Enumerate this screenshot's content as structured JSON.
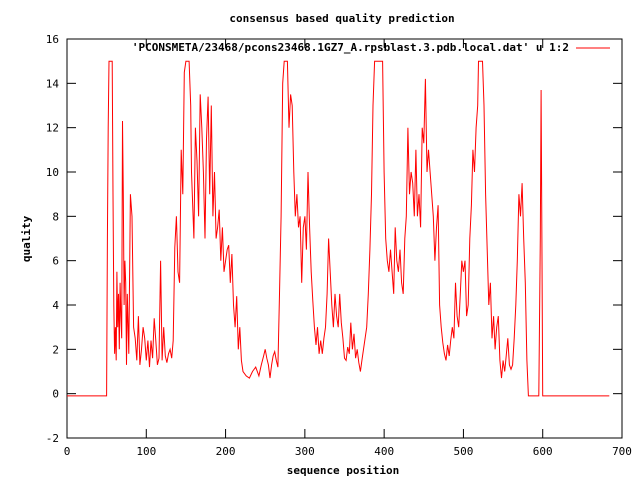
{
  "chart_data": {
    "type": "line",
    "title": "consensus based quality prediction",
    "xlabel": "sequence position",
    "ylabel": "quality",
    "xlim": [
      0,
      700
    ],
    "ylim": [
      -2,
      16
    ],
    "xticks": [
      0,
      100,
      200,
      300,
      400,
      500,
      600,
      700
    ],
    "yticks": [
      -2,
      0,
      2,
      4,
      6,
      8,
      10,
      12,
      14,
      16
    ],
    "grid": false,
    "legend_position": "top-right",
    "series_color": "#ff0000",
    "series": [
      {
        "name": "'PCONSMETA/23468/pcons23468.1GZ7_A.rpsblast.3.pdb.local.dat' u 1:2",
        "points": [
          [
            0,
            -0.1
          ],
          [
            50,
            -0.1
          ],
          [
            51,
            7
          ],
          [
            52,
            12
          ],
          [
            53,
            15
          ],
          [
            55,
            15
          ],
          [
            57,
            15
          ],
          [
            58,
            9
          ],
          [
            59,
            4
          ],
          [
            60,
            1.8
          ],
          [
            61,
            3
          ],
          [
            62,
            1.5
          ],
          [
            63,
            5.5
          ],
          [
            64,
            3
          ],
          [
            65,
            4.5
          ],
          [
            66,
            2
          ],
          [
            67,
            5
          ],
          [
            68,
            3.5
          ],
          [
            69,
            2.5
          ],
          [
            70,
            12.3
          ],
          [
            71,
            9
          ],
          [
            72,
            4
          ],
          [
            73,
            6
          ],
          [
            74,
            5
          ],
          [
            75,
            1.3
          ],
          [
            76,
            4.5
          ],
          [
            78,
            1.8
          ],
          [
            80,
            9
          ],
          [
            82,
            8
          ],
          [
            84,
            3
          ],
          [
            86,
            2.5
          ],
          [
            88,
            1.5
          ],
          [
            90,
            3.5
          ],
          [
            92,
            1.3
          ],
          [
            94,
            2
          ],
          [
            96,
            3
          ],
          [
            98,
            2.5
          ],
          [
            100,
            1.5
          ],
          [
            102,
            2.4
          ],
          [
            104,
            1.2
          ],
          [
            106,
            2.4
          ],
          [
            108,
            1.6
          ],
          [
            110,
            3.4
          ],
          [
            112,
            2.4
          ],
          [
            114,
            1.3
          ],
          [
            116,
            1.6
          ],
          [
            118,
            6
          ],
          [
            120,
            1.5
          ],
          [
            122,
            3
          ],
          [
            124,
            1.7
          ],
          [
            126,
            1.4
          ],
          [
            128,
            1.8
          ],
          [
            130,
            2
          ],
          [
            132,
            1.6
          ],
          [
            134,
            2.4
          ],
          [
            136,
            6.6
          ],
          [
            138,
            8
          ],
          [
            140,
            5.5
          ],
          [
            142,
            5
          ],
          [
            144,
            11
          ],
          [
            146,
            9
          ],
          [
            148,
            14.5
          ],
          [
            150,
            15
          ],
          [
            154,
            15
          ],
          [
            156,
            13
          ],
          [
            157,
            10
          ],
          [
            158,
            9
          ],
          [
            160,
            7
          ],
          [
            162,
            12
          ],
          [
            164,
            10.5
          ],
          [
            166,
            8
          ],
          [
            168,
            13.5
          ],
          [
            170,
            12
          ],
          [
            172,
            10
          ],
          [
            174,
            7
          ],
          [
            176,
            11.5
          ],
          [
            178,
            13.4
          ],
          [
            180,
            9
          ],
          [
            182,
            13
          ],
          [
            184,
            8
          ],
          [
            186,
            10
          ],
          [
            188,
            7
          ],
          [
            190,
            7.5
          ],
          [
            192,
            8.3
          ],
          [
            194,
            6
          ],
          [
            196,
            7.5
          ],
          [
            198,
            5.5
          ],
          [
            200,
            6
          ],
          [
            202,
            6.5
          ],
          [
            204,
            6.7
          ],
          [
            206,
            5
          ],
          [
            208,
            6.3
          ],
          [
            210,
            4
          ],
          [
            212,
            3
          ],
          [
            214,
            4.4
          ],
          [
            216,
            2
          ],
          [
            218,
            3
          ],
          [
            220,
            1.5
          ],
          [
            222,
            1
          ],
          [
            226,
            0.8
          ],
          [
            230,
            0.7
          ],
          [
            234,
            1
          ],
          [
            238,
            1.2
          ],
          [
            242,
            0.8
          ],
          [
            245,
            1.3
          ],
          [
            248,
            1.7
          ],
          [
            250,
            2
          ],
          [
            252,
            1.6
          ],
          [
            254,
            1.3
          ],
          [
            256,
            0.7
          ],
          [
            258,
            1.3
          ],
          [
            260,
            1.7
          ],
          [
            262,
            1.9
          ],
          [
            264,
            1.5
          ],
          [
            266,
            1.2
          ],
          [
            268,
            4.5
          ],
          [
            270,
            8
          ],
          [
            272,
            14
          ],
          [
            274,
            15
          ],
          [
            278,
            15
          ],
          [
            280,
            12
          ],
          [
            282,
            13.5
          ],
          [
            284,
            13
          ],
          [
            286,
            10
          ],
          [
            288,
            8
          ],
          [
            290,
            9
          ],
          [
            292,
            7.5
          ],
          [
            294,
            8
          ],
          [
            296,
            5
          ],
          [
            298,
            7.5
          ],
          [
            300,
            8
          ],
          [
            302,
            6.5
          ],
          [
            304,
            10
          ],
          [
            306,
            7.5
          ],
          [
            308,
            5.5
          ],
          [
            310,
            4.2
          ],
          [
            312,
            3
          ],
          [
            314,
            2.2
          ],
          [
            316,
            3
          ],
          [
            318,
            1.8
          ],
          [
            320,
            2.4
          ],
          [
            322,
            1.8
          ],
          [
            324,
            2.5
          ],
          [
            326,
            3
          ],
          [
            328,
            4.5
          ],
          [
            330,
            7
          ],
          [
            332,
            5.5
          ],
          [
            334,
            4
          ],
          [
            336,
            3
          ],
          [
            338,
            4.5
          ],
          [
            340,
            3.5
          ],
          [
            342,
            3
          ],
          [
            344,
            4.5
          ],
          [
            346,
            3.2
          ],
          [
            348,
            2.5
          ],
          [
            350,
            1.6
          ],
          [
            352,
            1.5
          ],
          [
            354,
            2.1
          ],
          [
            356,
            1.8
          ],
          [
            358,
            3.2
          ],
          [
            360,
            2
          ],
          [
            362,
            2.7
          ],
          [
            364,
            1.6
          ],
          [
            366,
            2
          ],
          [
            368,
            1.4
          ],
          [
            370,
            1
          ],
          [
            372,
            1.5
          ],
          [
            374,
            2
          ],
          [
            376,
            2.5
          ],
          [
            378,
            3
          ],
          [
            380,
            4.5
          ],
          [
            382,
            6.5
          ],
          [
            384,
            9
          ],
          [
            386,
            13
          ],
          [
            388,
            15
          ],
          [
            398,
            15
          ],
          [
            400,
            10
          ],
          [
            402,
            7
          ],
          [
            404,
            6
          ],
          [
            406,
            5.5
          ],
          [
            408,
            6.5
          ],
          [
            410,
            5.5
          ],
          [
            412,
            4.5
          ],
          [
            414,
            7.5
          ],
          [
            416,
            6
          ],
          [
            418,
            5.5
          ],
          [
            420,
            6.5
          ],
          [
            422,
            5
          ],
          [
            424,
            4.5
          ],
          [
            426,
            7
          ],
          [
            428,
            8
          ],
          [
            430,
            12
          ],
          [
            432,
            9
          ],
          [
            434,
            10
          ],
          [
            436,
            9.5
          ],
          [
            438,
            8
          ],
          [
            440,
            11
          ],
          [
            442,
            8
          ],
          [
            444,
            9
          ],
          [
            446,
            7.5
          ],
          [
            448,
            12
          ],
          [
            450,
            11.3
          ],
          [
            452,
            14.2
          ],
          [
            454,
            10
          ],
          [
            456,
            11
          ],
          [
            458,
            10
          ],
          [
            460,
            9
          ],
          [
            462,
            8
          ],
          [
            464,
            6
          ],
          [
            466,
            7.5
          ],
          [
            468,
            8.5
          ],
          [
            470,
            4
          ],
          [
            472,
            3
          ],
          [
            474,
            2.3
          ],
          [
            476,
            1.8
          ],
          [
            478,
            1.5
          ],
          [
            480,
            2.2
          ],
          [
            482,
            1.7
          ],
          [
            484,
            2.4
          ],
          [
            486,
            3
          ],
          [
            488,
            2.5
          ],
          [
            490,
            5
          ],
          [
            492,
            3.5
          ],
          [
            494,
            3
          ],
          [
            496,
            4.5
          ],
          [
            498,
            6
          ],
          [
            500,
            5.5
          ],
          [
            502,
            6
          ],
          [
            504,
            3.5
          ],
          [
            506,
            4
          ],
          [
            508,
            7
          ],
          [
            510,
            8.5
          ],
          [
            512,
            11
          ],
          [
            514,
            10
          ],
          [
            516,
            12
          ],
          [
            518,
            13
          ],
          [
            519,
            15
          ],
          [
            524,
            15
          ],
          [
            526,
            13
          ],
          [
            528,
            9
          ],
          [
            530,
            6.5
          ],
          [
            532,
            4
          ],
          [
            534,
            5
          ],
          [
            536,
            2.5
          ],
          [
            538,
            3.5
          ],
          [
            540,
            2
          ],
          [
            542,
            3
          ],
          [
            544,
            3.5
          ],
          [
            546,
            1.5
          ],
          [
            548,
            0.7
          ],
          [
            550,
            1.5
          ],
          [
            552,
            1
          ],
          [
            554,
            1.7
          ],
          [
            556,
            2.5
          ],
          [
            558,
            1.3
          ],
          [
            560,
            1.1
          ],
          [
            562,
            1.3
          ],
          [
            564,
            2.5
          ],
          [
            566,
            4
          ],
          [
            568,
            6
          ],
          [
            570,
            9
          ],
          [
            572,
            8
          ],
          [
            574,
            9.5
          ],
          [
            576,
            7
          ],
          [
            578,
            5
          ],
          [
            580,
            1.5
          ],
          [
            582,
            -0.1
          ],
          [
            595,
            -0.1
          ],
          [
            597,
            7
          ],
          [
            598,
            13.7
          ],
          [
            599,
            7
          ],
          [
            600,
            -0.1
          ],
          [
            684,
            -0.1
          ]
        ]
      }
    ]
  }
}
